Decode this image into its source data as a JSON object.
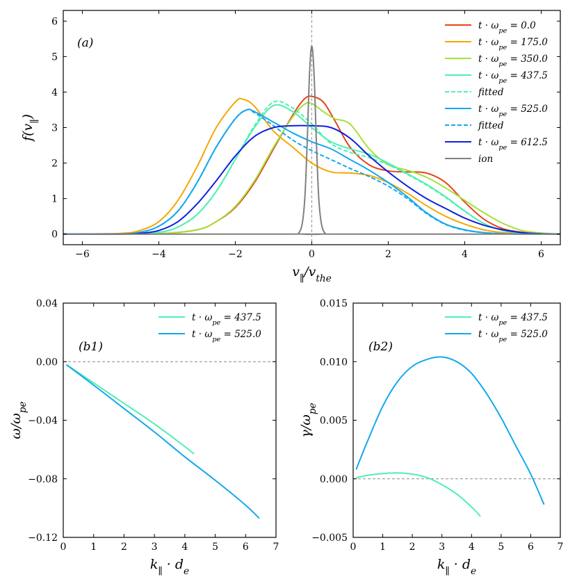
{
  "chart_data": [
    {
      "id": "a",
      "type": "line",
      "panel_label": "(a)",
      "xlabel": "v∥/vthe",
      "ylabel": "f(v∥)",
      "xlim": [
        -6.5,
        6.5
      ],
      "ylim": [
        -0.3,
        6.3
      ],
      "xticks": [
        -6,
        -4,
        -2,
        0,
        2,
        4,
        6
      ],
      "yticks": [
        0,
        1,
        2,
        3,
        4,
        5,
        6
      ],
      "vertical_reference": 0,
      "legend_position": "top-right",
      "series": [
        {
          "name": "t · ωpe = 0.0",
          "color": "#e8421a",
          "dash": false,
          "x": [
            -6.5,
            -5,
            -4,
            -3,
            -2.5,
            -2,
            -1.5,
            -1,
            -0.5,
            -0.2,
            0,
            0.3,
            0.6,
            1,
            1.5,
            2,
            2.5,
            3,
            3.5,
            4,
            4.5,
            5,
            5.5,
            6,
            6.5
          ],
          "y": [
            0,
            0,
            0.01,
            0.12,
            0.35,
            0.75,
            1.45,
            2.4,
            3.35,
            3.8,
            3.88,
            3.72,
            3.2,
            2.45,
            1.95,
            1.78,
            1.75,
            1.72,
            1.45,
            0.9,
            0.42,
            0.15,
            0.05,
            0.01,
            0
          ]
        },
        {
          "name": "t · ωpe = 175.0",
          "color": "#f5a700",
          "dash": false,
          "x": [
            -6.5,
            -5,
            -4.5,
            -4,
            -3.5,
            -3,
            -2.5,
            -2,
            -1.8,
            -1.5,
            -1,
            -0.5,
            0,
            0.5,
            1,
            1.5,
            2,
            2.5,
            3,
            3.5,
            4,
            4.5,
            5,
            5.5,
            6,
            6.5
          ],
          "y": [
            0,
            0.02,
            0.1,
            0.35,
            0.95,
            1.9,
            3.0,
            3.72,
            3.8,
            3.6,
            2.9,
            2.45,
            2.0,
            1.75,
            1.72,
            1.65,
            1.45,
            1.15,
            0.8,
            0.5,
            0.28,
            0.12,
            0.04,
            0.01,
            0,
            0
          ]
        },
        {
          "name": "t · ωpe = 350.0",
          "color": "#a6e03a",
          "dash": false,
          "x": [
            -6.5,
            -5,
            -4,
            -3,
            -2.5,
            -2,
            -1.5,
            -1,
            -0.5,
            -0.2,
            0,
            0.3,
            0.6,
            1,
            1.5,
            2,
            2.5,
            3,
            3.5,
            4,
            4.5,
            5,
            5.5,
            6,
            6.5
          ],
          "y": [
            0,
            0,
            0.01,
            0.12,
            0.35,
            0.78,
            1.5,
            2.45,
            3.3,
            3.65,
            3.68,
            3.45,
            3.25,
            3.1,
            2.4,
            1.95,
            1.8,
            1.6,
            1.3,
            0.95,
            0.6,
            0.3,
            0.1,
            0.03,
            0
          ]
        },
        {
          "name": "t · ωpe = 437.5",
          "color": "#4ff0b0",
          "dash": false,
          "x": [
            -6.5,
            -5,
            -4,
            -3.5,
            -3,
            -2.5,
            -2,
            -1.5,
            -1,
            -0.5,
            0,
            0.5,
            1,
            1.5,
            2,
            2.5,
            3,
            3.5,
            4,
            4.5,
            5,
            5.5,
            6,
            6.5
          ],
          "y": [
            0,
            0,
            0.05,
            0.2,
            0.55,
            1.2,
            2.1,
            3.0,
            3.62,
            3.45,
            3.0,
            2.6,
            2.4,
            2.25,
            2.0,
            1.7,
            1.4,
            1.05,
            0.65,
            0.3,
            0.1,
            0.03,
            0.01,
            0
          ]
        },
        {
          "name": "fitted",
          "color": "#4ff0b0",
          "dash": true,
          "x": [
            -6.5,
            -5,
            -4,
            -3.5,
            -3,
            -2.5,
            -2,
            -1.5,
            -1,
            -0.5,
            0,
            0.5,
            1,
            1.5,
            2,
            2.5,
            3,
            3.5,
            4,
            4.5,
            5,
            5.5,
            6,
            6.5
          ],
          "y": [
            0,
            0,
            0.05,
            0.2,
            0.55,
            1.2,
            2.1,
            3.05,
            3.72,
            3.55,
            3.1,
            2.55,
            2.3,
            2.15,
            1.95,
            1.68,
            1.38,
            1.03,
            0.64,
            0.3,
            0.1,
            0.03,
            0.01,
            0
          ]
        },
        {
          "name": "t · ωpe = 525.0",
          "color": "#12a8ee",
          "dash": false,
          "x": [
            -6.5,
            -5,
            -4.5,
            -4,
            -3.5,
            -3,
            -2.5,
            -2,
            -1.7,
            -1.5,
            -1,
            -0.5,
            0,
            0.5,
            1,
            1.5,
            2,
            2.5,
            3,
            3.5,
            4,
            4.5,
            5,
            5.5,
            6,
            6.5
          ],
          "y": [
            0,
            0,
            0.05,
            0.22,
            0.65,
            1.45,
            2.45,
            3.25,
            3.5,
            3.45,
            3.15,
            2.85,
            2.6,
            2.4,
            2.1,
            1.8,
            1.45,
            1.05,
            0.6,
            0.28,
            0.12,
            0.04,
            0.01,
            0,
            0,
            0
          ]
        },
        {
          "name": "fitted",
          "color": "#12a8ee",
          "dash": true,
          "x": [
            -6.5,
            -5,
            -4.5,
            -4,
            -3.5,
            -3,
            -2.5,
            -2,
            -1.7,
            -1.5,
            -1,
            -0.5,
            0,
            0.5,
            1,
            1.5,
            2,
            2.5,
            3,
            3.5,
            4,
            4.5,
            5,
            5.5,
            6,
            6.5
          ],
          "y": [
            0,
            0,
            0.05,
            0.22,
            0.65,
            1.45,
            2.45,
            3.25,
            3.5,
            3.42,
            3.05,
            2.65,
            2.35,
            2.1,
            1.85,
            1.62,
            1.35,
            1.0,
            0.58,
            0.27,
            0.11,
            0.04,
            0.01,
            0,
            0,
            0
          ]
        },
        {
          "name": "t · ωpe = 612.5",
          "color": "#1020e0",
          "dash": false,
          "x": [
            -6.5,
            -5,
            -4.5,
            -4,
            -3.5,
            -3,
            -2.5,
            -2,
            -1.5,
            -1,
            -0.5,
            0,
            0.5,
            1,
            1.5,
            2,
            2.5,
            3,
            3.5,
            4,
            4.5,
            5,
            5.5,
            6,
            6.5
          ],
          "y": [
            0,
            0,
            0.02,
            0.1,
            0.35,
            0.85,
            1.5,
            2.2,
            2.75,
            3.0,
            3.05,
            3.05,
            3.0,
            2.7,
            2.2,
            1.75,
            1.35,
            1.0,
            0.72,
            0.45,
            0.25,
            0.12,
            0.04,
            0.01,
            0
          ]
        },
        {
          "name": "ion",
          "color": "#808080",
          "dash": false,
          "x": [
            -6.5,
            -0.5,
            -0.35,
            -0.25,
            -0.18,
            -0.12,
            -0.06,
            0,
            0.06,
            0.12,
            0.18,
            0.25,
            0.35,
            0.5,
            6.5
          ],
          "y": [
            0,
            0,
            0.02,
            0.3,
            1.05,
            2.6,
            4.5,
            5.3,
            4.5,
            2.6,
            1.05,
            0.3,
            0.02,
            0,
            0
          ]
        }
      ]
    },
    {
      "id": "b1",
      "type": "line",
      "panel_label": "(b1)",
      "xlabel": "k∥ · de",
      "ylabel": "ω/ωpe",
      "xlim": [
        0,
        7
      ],
      "ylim": [
        -0.12,
        0.04
      ],
      "xticks": [
        0,
        1,
        2,
        3,
        4,
        5,
        6,
        7
      ],
      "yticks": [
        -0.12,
        -0.08,
        -0.04,
        0.0,
        0.04
      ],
      "ytick_labels": [
        "−0.12",
        "−0.08",
        "−0.04",
        "0.00",
        "0.04"
      ],
      "horizontal_reference": 0,
      "legend_position": "top-right",
      "series": [
        {
          "name": "t · ωpe = 437.5",
          "color": "#4ff0b0",
          "x": [
            0.1,
            1,
            2,
            3,
            4,
            4.3
          ],
          "y": [
            -0.002,
            -0.0145,
            -0.0285,
            -0.0425,
            -0.058,
            -0.063
          ]
        },
        {
          "name": "t · ωpe = 525.0",
          "color": "#12a8ee",
          "x": [
            0.1,
            1,
            2,
            3,
            4,
            5,
            6,
            6.45
          ],
          "y": [
            -0.002,
            -0.016,
            -0.032,
            -0.048,
            -0.065,
            -0.081,
            -0.098,
            -0.107
          ]
        }
      ]
    },
    {
      "id": "b2",
      "type": "line",
      "panel_label": "(b2)",
      "xlabel": "k∥ · de",
      "ylabel": "γ/ωpe",
      "xlim": [
        0,
        7
      ],
      "ylim": [
        -0.005,
        0.015
      ],
      "xticks": [
        0,
        1,
        2,
        3,
        4,
        5,
        6,
        7
      ],
      "yticks": [
        -0.005,
        0.0,
        0.005,
        0.01,
        0.015
      ],
      "ytick_labels": [
        "−0.005",
        "0.000",
        "0.005",
        "0.010",
        "0.015"
      ],
      "horizontal_reference": 0,
      "legend_position": "top-right",
      "series": [
        {
          "name": "t · ωpe = 437.5",
          "color": "#4ff0b0",
          "x": [
            0.1,
            0.5,
            1,
            1.5,
            2,
            2.5,
            3,
            3.5,
            4,
            4.3
          ],
          "y": [
            0.0001,
            0.0003,
            0.00045,
            0.0005,
            0.0004,
            0.0001,
            -0.0005,
            -0.0013,
            -0.0024,
            -0.0032
          ]
        },
        {
          "name": "t · ωpe = 525.0",
          "color": "#12a8ee",
          "x": [
            0.1,
            0.5,
            1,
            1.5,
            2,
            2.5,
            3,
            3.5,
            4,
            4.5,
            5,
            5.5,
            6,
            6.45
          ],
          "y": [
            0.0008,
            0.0033,
            0.0062,
            0.0083,
            0.0096,
            0.0102,
            0.0104,
            0.01,
            0.009,
            0.0073,
            0.0052,
            0.0028,
            0.0004,
            -0.0022
          ]
        }
      ]
    }
  ]
}
